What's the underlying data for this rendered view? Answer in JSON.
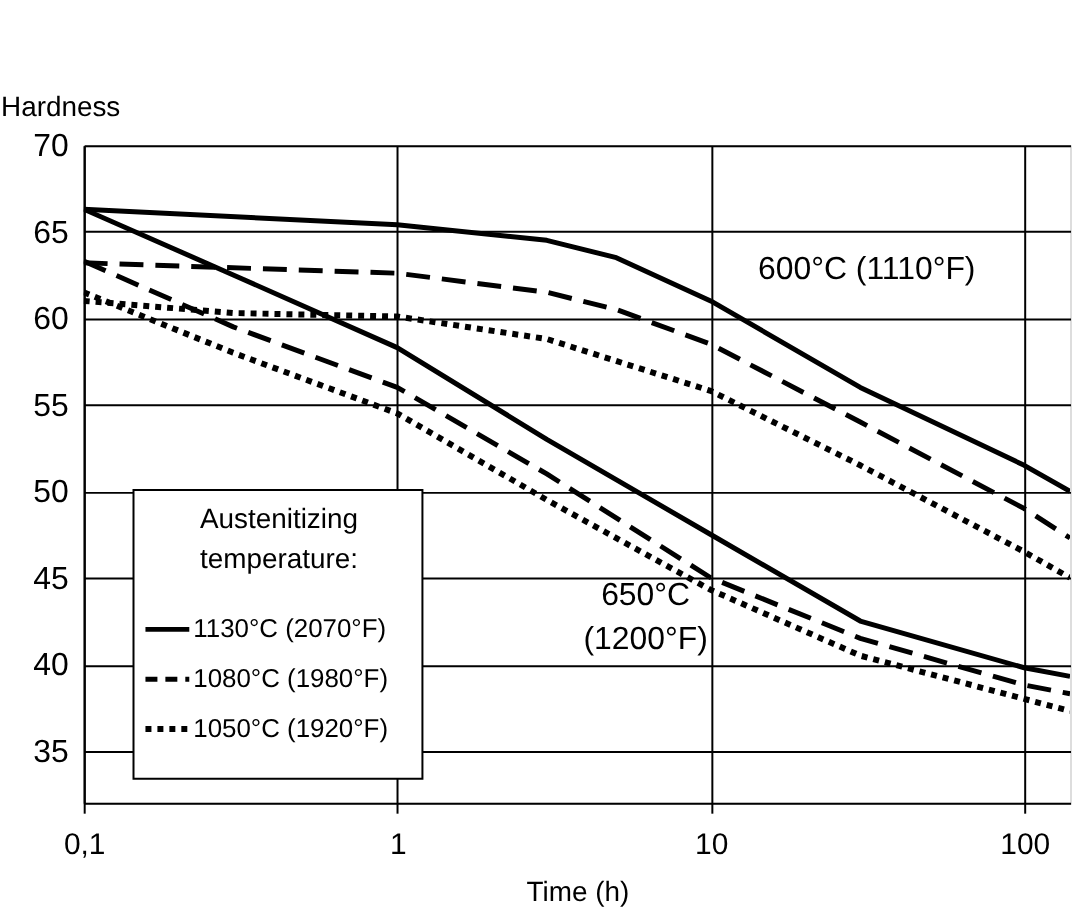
{
  "chart_data": {
    "type": "line",
    "xlabel": "Time (h)",
    "ylabel": "Hardness",
    "legend_title": "Austenitizing temperature:",
    "log": "x",
    "grid": true,
    "legend": "bottom left",
    "xlim": [
      0.1,
      140
    ],
    "xticks": [
      {
        "value": 0.1,
        "label": "0,1"
      },
      1,
      10,
      100
    ],
    "ylim": [
      32,
      70
    ],
    "yticks": [
      35,
      40,
      45,
      50,
      55,
      60,
      65,
      70
    ],
    "series": [
      {
        "name": "1130°C (2070°F)",
        "color": "#000000",
        "line_style": "solid",
        "x": [
          0.1,
          1,
          3,
          5,
          10,
          30,
          100,
          140
        ],
        "values": [
          66.3,
          65.4,
          64.5,
          63.5,
          61,
          56,
          51.5,
          50
        ]
      },
      {
        "name": "1080°C (1980°F)",
        "color": "#000000",
        "line_style": "dashed",
        "x": [
          0.1,
          1,
          3,
          5,
          10,
          30,
          100,
          140
        ],
        "values": [
          63.2,
          62.6,
          61.5,
          60.5,
          58.5,
          54,
          49,
          47.3
        ]
      },
      {
        "name": "1050°C (1920°F)",
        "color": "#000000",
        "line_style": "dotted",
        "x": [
          0.1,
          0.3,
          1,
          3,
          10,
          30,
          100,
          140
        ],
        "values": [
          61,
          60.3,
          60.1,
          58.8,
          55.8,
          51.5,
          46.5,
          45
        ]
      },
      {
        "color": "#000000",
        "line_style": "solid",
        "x": [
          0.1,
          0.3,
          1,
          3,
          10,
          30,
          100,
          140
        ],
        "values": [
          66.3,
          62.5,
          58.3,
          53,
          47.5,
          42.5,
          39.8,
          39.3
        ]
      },
      {
        "color": "#000000",
        "line_style": "dashed",
        "x": [
          0.1,
          0.3,
          1,
          3,
          10,
          30,
          100,
          140
        ],
        "values": [
          63.3,
          59.5,
          56,
          51,
          45,
          41.5,
          38.8,
          38.3
        ]
      },
      {
        "color": "#000000",
        "line_style": "dotted",
        "x": [
          0.1,
          0.3,
          1,
          3,
          10,
          30,
          100,
          140
        ],
        "values": [
          61.5,
          58,
          54.5,
          49.5,
          44.3,
          40.5,
          38,
          37.3
        ]
      }
    ],
    "annotations": [
      "600°C (1110°F)",
      "650°C (1200°F)"
    ]
  }
}
